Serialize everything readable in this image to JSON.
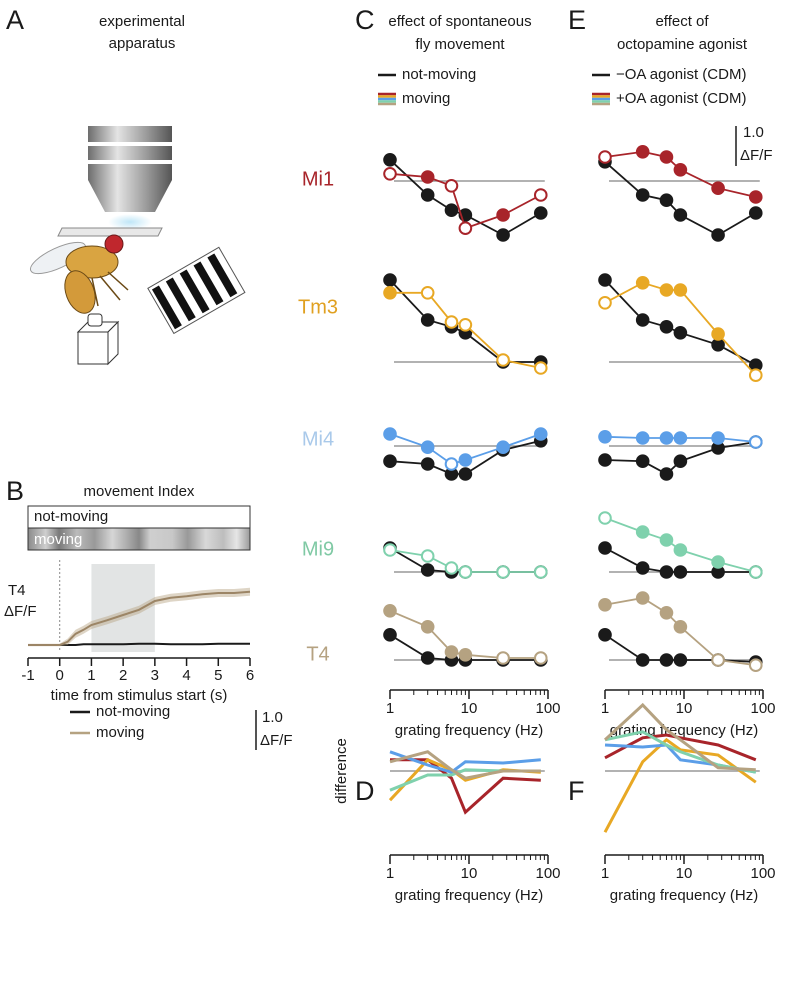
{
  "figure": {
    "panel_A": {
      "letter": "A",
      "title_lines": [
        "experimental",
        "apparatus"
      ]
    }
  },
  "chart_data": [
    {
      "panel": "B",
      "type": "timecourse",
      "title": "movement Index",
      "state_labels": [
        "not-moving",
        "moving"
      ],
      "ylabel_lines": [
        "T4",
        "ΔF/F"
      ],
      "xlabel": "time from stimulus start (s)",
      "xlim": [
        -1,
        6
      ],
      "xticks": [
        -1,
        0,
        1,
        2,
        3,
        4,
        5,
        6
      ],
      "onset": 0,
      "stimulus_window": [
        1,
        3
      ],
      "x": [
        -1,
        -0.5,
        0,
        0.25,
        0.5,
        0.75,
        1,
        1.5,
        2,
        2.5,
        3,
        3.5,
        4,
        4.5,
        5,
        5.5,
        6
      ],
      "series": [
        {
          "name": "not-moving",
          "color": "#1a1a1a",
          "values": [
            0,
            0,
            0,
            0,
            0,
            0.02,
            0.02,
            0.02,
            0.02,
            0.03,
            0.03,
            0.02,
            0.02,
            0.02,
            0.03,
            0.03,
            0.03
          ]
        },
        {
          "name": "moving",
          "color": "#b5a281",
          "values": [
            0,
            0,
            0,
            0.08,
            0.28,
            0.38,
            0.5,
            0.62,
            0.75,
            0.88,
            1.1,
            1.18,
            1.22,
            1.27,
            1.3,
            1.3,
            1.33
          ],
          "error": [
            0.03,
            0.03,
            0.03,
            0.08,
            0.1,
            0.1,
            0.1,
            0.1,
            0.1,
            0.1,
            0.1,
            0.1,
            0.1,
            0.1,
            0.1,
            0.1,
            0.1
          ]
        }
      ],
      "scale_bar": {
        "value": 1.0,
        "label": "1.0",
        "unit": "ΔF/F"
      }
    },
    {
      "panel": "C",
      "type": "dot-line",
      "title_lines": [
        "effect of spontaneous",
        "fly movement"
      ],
      "legend": [
        {
          "name": "not-moving",
          "color": "#1a1a1a"
        },
        {
          "name": "moving",
          "colors": [
            "#a8242a",
            "#e8a824",
            "#5b9ee8",
            "#7fd1ad",
            "#b5a281"
          ]
        }
      ],
      "xlabel": "grating frequency (Hz)",
      "xlim": [
        1,
        100
      ],
      "xticks": [
        1,
        10,
        100
      ],
      "log_x": true,
      "x": [
        1,
        3,
        6,
        9,
        27,
        81
      ],
      "rows": [
        {
          "name": "Mi1",
          "color": "#a8242a",
          "label_color": "#a8242a",
          "control": [
            0.53,
            -0.35,
            -0.73,
            -0.85,
            -1.35,
            -0.8
          ],
          "test": [
            0.18,
            0.1,
            -0.12,
            -1.18,
            -0.85,
            -0.35
          ],
          "test_open": [
            true,
            false,
            true,
            true,
            false,
            true
          ]
        },
        {
          "name": "Tm3",
          "color": "#e8a824",
          "label_color": "#e0a020",
          "control": [
            2.05,
            1.05,
            0.88,
            0.73,
            0,
            0
          ],
          "test": [
            1.73,
            1.73,
            1.0,
            0.93,
            0.05,
            -0.15
          ],
          "test_open": [
            false,
            true,
            true,
            true,
            true,
            true
          ]
        },
        {
          "name": "Mi4",
          "color": "#5b9ee8",
          "label_color": "#a9c9ea",
          "control": [
            -0.38,
            -0.45,
            -0.7,
            -0.7,
            -0.1,
            0.13
          ],
          "test": [
            0.3,
            -0.03,
            -0.45,
            -0.35,
            -0.03,
            0.3
          ],
          "test_open": [
            false,
            false,
            true,
            false,
            false,
            false
          ]
        },
        {
          "name": "Mi9",
          "color": "#7fd1ad",
          "label_color": "#7fc9a4",
          "control": [
            0.6,
            0.05,
            0,
            0,
            0,
            0
          ],
          "test": [
            0.55,
            0.4,
            0.1,
            0,
            0,
            0
          ],
          "test_open": [
            true,
            true,
            true,
            true,
            true,
            true
          ]
        },
        {
          "name": "T4",
          "color": "#b5a281",
          "label_color": "#b5a281",
          "control": [
            0.63,
            0.05,
            0,
            0,
            0,
            0
          ],
          "test": [
            1.23,
            0.83,
            0.2,
            0.13,
            0.05,
            0.05
          ],
          "test_open": [
            false,
            false,
            false,
            false,
            true,
            true
          ]
        }
      ]
    },
    {
      "panel": "D",
      "type": "difference",
      "ylabel": "difference",
      "xlabel": "grating frequency (Hz)",
      "xlim": [
        1,
        100
      ],
      "xticks": [
        1,
        10,
        100
      ],
      "log_x": true,
      "x": [
        1,
        3,
        6,
        9,
        27,
        81
      ],
      "series": [
        {
          "color": "#a8242a",
          "values": [
            0.28,
            0.28,
            -0.18,
            -1.03,
            -0.18,
            -0.23
          ]
        },
        {
          "color": "#e8a824",
          "values": [
            -0.73,
            0.28,
            0.03,
            -0.23,
            0.03,
            -0.03
          ]
        },
        {
          "color": "#5b9ee8",
          "values": [
            0.48,
            0.15,
            -0.03,
            0.23,
            0.2,
            0.28
          ]
        },
        {
          "color": "#7fd1ad",
          "values": [
            -0.48,
            -0.1,
            -0.1,
            0.03,
            0,
            0
          ]
        },
        {
          "color": "#b5a281",
          "values": [
            0.23,
            0.48,
            0.03,
            -0.18,
            0,
            0
          ]
        }
      ]
    },
    {
      "panel": "E",
      "type": "dot-line",
      "title_lines": [
        "effect of",
        "octopamine agonist"
      ],
      "legend": [
        {
          "name": "−OA agonist (CDM)",
          "color": "#1a1a1a"
        },
        {
          "name": "+OA agonist (CDM)",
          "colors": [
            "#a8242a",
            "#e8a824",
            "#5b9ee8",
            "#7fd1ad",
            "#b5a281"
          ]
        }
      ],
      "scale_bar": {
        "value": 1.0,
        "label": "1.0",
        "unit": "ΔF/F"
      },
      "xlabel": "grating frequency (Hz)",
      "xlim": [
        1,
        100
      ],
      "xticks": [
        1,
        10,
        100
      ],
      "log_x": true,
      "x": [
        1,
        3,
        6,
        9,
        27,
        81
      ],
      "rows": [
        {
          "name": "Mi1",
          "color": "#a8242a",
          "control": [
            0.48,
            -0.35,
            -0.48,
            -0.85,
            -1.35,
            -0.8
          ],
          "test": [
            0.6,
            0.73,
            0.6,
            0.28,
            -0.18,
            -0.4
          ],
          "test_open": [
            true,
            false,
            false,
            false,
            false,
            false
          ]
        },
        {
          "name": "Tm3",
          "color": "#e8a824",
          "control": [
            2.05,
            1.05,
            0.88,
            0.73,
            0.43,
            -0.08
          ],
          "test": [
            1.48,
            1.98,
            1.8,
            1.8,
            0.7,
            -0.33
          ],
          "test_open": [
            true,
            false,
            false,
            false,
            false,
            true
          ]
        },
        {
          "name": "Mi4",
          "color": "#5b9ee8",
          "control": [
            -0.35,
            -0.38,
            -0.7,
            -0.38,
            -0.05,
            0.1
          ],
          "test": [
            0.23,
            0.2,
            0.2,
            0.2,
            0.2,
            0.1
          ],
          "test_open": [
            false,
            false,
            false,
            false,
            false,
            true
          ]
        },
        {
          "name": "Mi9",
          "color": "#7fd1ad",
          "control": [
            0.6,
            0.1,
            0,
            0,
            0,
            0
          ],
          "test": [
            1.35,
            1.0,
            0.8,
            0.55,
            0.25,
            0
          ],
          "test_open": [
            true,
            false,
            false,
            false,
            false,
            true
          ]
        },
        {
          "name": "T4",
          "color": "#b5a281",
          "control": [
            0.63,
            0,
            0,
            0,
            0,
            -0.05
          ],
          "test": [
            1.38,
            1.55,
            1.18,
            0.83,
            0,
            -0.13
          ],
          "test_open": [
            false,
            false,
            false,
            false,
            true,
            true
          ]
        }
      ]
    },
    {
      "panel": "F",
      "type": "difference",
      "xlabel": "grating frequency (Hz)",
      "xlim": [
        1,
        100
      ],
      "xticks": [
        1,
        10,
        100
      ],
      "log_x": true,
      "x": [
        1,
        3,
        6,
        9,
        27,
        81
      ],
      "series": [
        {
          "color": "#a8242a",
          "values": [
            0.33,
            0.83,
            0.9,
            0.83,
            0.65,
            0.28
          ]
        },
        {
          "color": "#e8a824",
          "values": [
            -1.53,
            0.23,
            0.78,
            0.53,
            0.4,
            -0.28
          ]
        },
        {
          "color": "#5b9ee8",
          "values": [
            0.65,
            0.6,
            0.65,
            0.28,
            0.15,
            -0.03
          ]
        },
        {
          "color": "#7fd1ad",
          "values": [
            0.78,
            0.98,
            0.65,
            0.48,
            0.15,
            -0.03
          ]
        },
        {
          "color": "#b5a281",
          "values": [
            0.78,
            1.65,
            1.03,
            0.78,
            0.08,
            0.03
          ]
        }
      ]
    }
  ]
}
